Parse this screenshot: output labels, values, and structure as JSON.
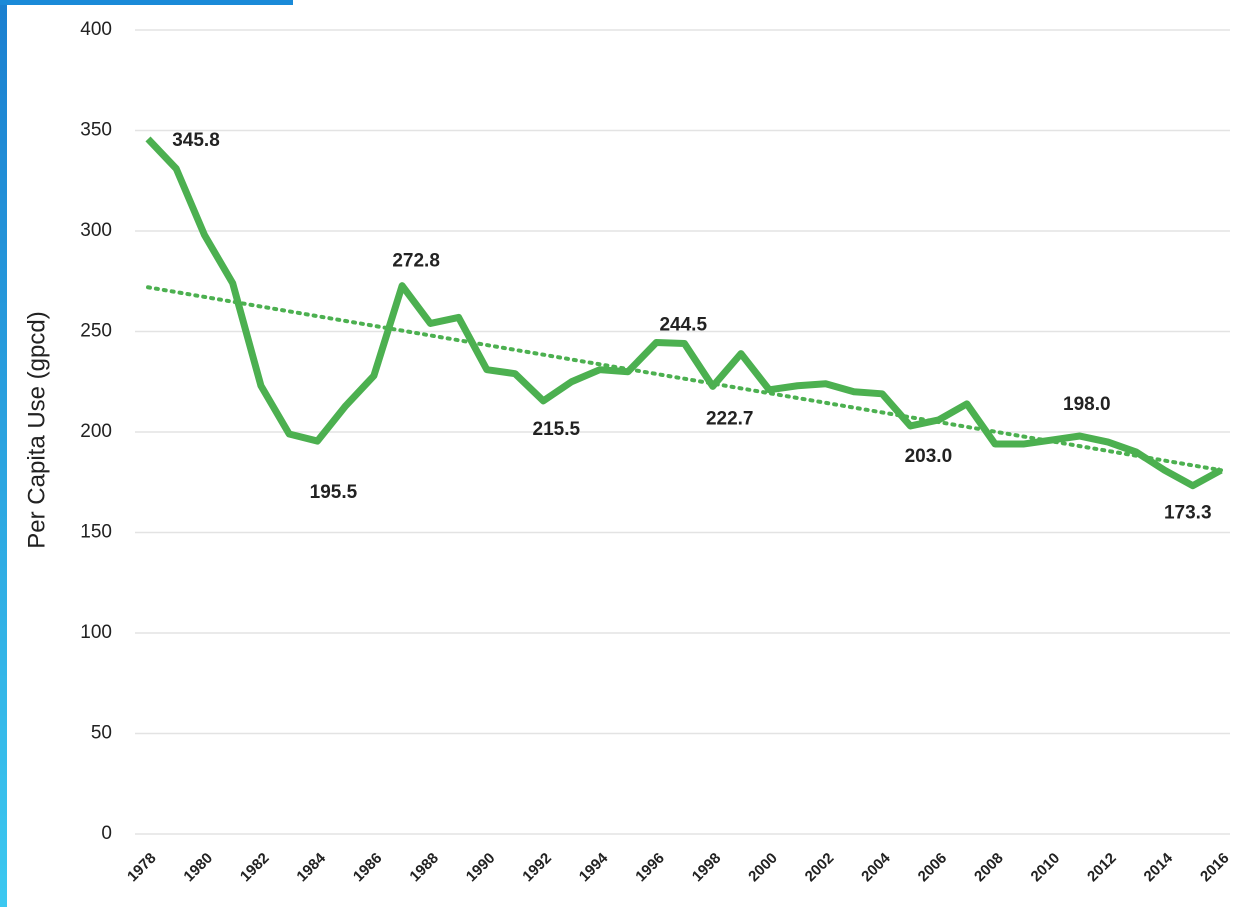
{
  "chart_data": {
    "type": "line",
    "y_label": "Per Capita Use (gpcd)",
    "x": [
      1978,
      1979,
      1980,
      1981,
      1982,
      1983,
      1984,
      1985,
      1986,
      1987,
      1988,
      1989,
      1990,
      1991,
      1992,
      1993,
      1994,
      1995,
      1996,
      1997,
      1998,
      1999,
      2000,
      2001,
      2002,
      2003,
      2004,
      2005,
      2006,
      2007,
      2008,
      2009,
      2010,
      2011,
      2012,
      2013,
      2014,
      2015,
      2016
    ],
    "values": [
      345.8,
      331,
      298,
      274,
      223,
      199,
      195.5,
      213,
      228,
      272.8,
      254,
      257,
      231,
      229,
      215.5,
      225,
      231,
      230,
      244.5,
      244,
      222.7,
      239,
      221,
      223,
      224,
      220,
      219,
      203.0,
      206,
      214,
      194,
      194,
      196,
      198.0,
      195,
      190,
      181,
      173.3,
      181
    ],
    "value_labels": [
      "345.8",
      null,
      null,
      null,
      null,
      null,
      "195.5",
      null,
      null,
      "272.8",
      null,
      null,
      null,
      null,
      "215.5",
      null,
      null,
      null,
      "244.5",
      null,
      "222.7",
      null,
      null,
      null,
      null,
      null,
      null,
      "203.0",
      null,
      null,
      null,
      null,
      null,
      "198.0",
      null,
      null,
      null,
      "173.3",
      null
    ],
    "color": "#4cb050",
    "trend": {
      "x": [
        1978,
        2016
      ],
      "values": [
        272,
        181
      ],
      "color": "#4cb050",
      "style": "dotted"
    },
    "xlim": [
      1978,
      2016
    ],
    "xticks": [
      1978,
      1980,
      1982,
      1984,
      1986,
      1988,
      1990,
      1992,
      1994,
      1996,
      1998,
      2000,
      2002,
      2004,
      2006,
      2008,
      2010,
      2012,
      2014,
      2016
    ],
    "ylim": [
      0,
      400
    ],
    "yticks": [
      0,
      50,
      100,
      150,
      200,
      250,
      300,
      350,
      400
    ],
    "grid": true
  }
}
